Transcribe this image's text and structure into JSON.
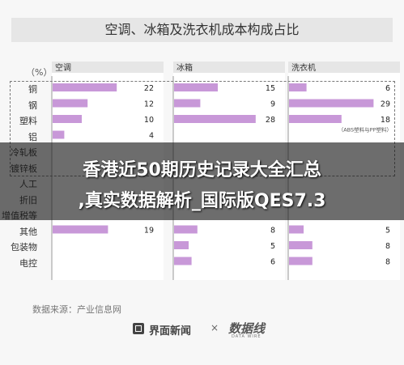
{
  "title": "空调、冰箱及洗衣机成本构成占比",
  "unit_label": "（%）",
  "source": "数据来源：产业信息网",
  "footer": {
    "brand": "界面新闻",
    "separator": "×",
    "partner": "数据线",
    "partner_sub": "DATA WIRE"
  },
  "overlay": {
    "line1": "香港近50期历史记录大全汇总",
    "line2": ",真实数据解析_国际版QES7.3"
  },
  "colors": {
    "bar": "#c898d8",
    "panel_bg": "#ffffff",
    "header_bg": "#e6e6e6",
    "axis": "#9a9a9a"
  },
  "chart_data": {
    "type": "bar",
    "orientation": "horizontal",
    "title": "空调、冰箱及洗衣机成本构成占比",
    "unit": "%",
    "categories": [
      "铜",
      "钢",
      "塑料",
      "铝",
      "冷轧板",
      "镀锌板",
      "人工",
      "折旧",
      "增值税等",
      "其他",
      "包装物",
      "电控"
    ],
    "xlim": [
      0,
      30
    ],
    "panels": [
      {
        "name": "空调",
        "values": [
          22,
          12,
          10,
          4,
          null,
          null,
          null,
          null,
          null,
          19,
          null,
          null
        ]
      },
      {
        "name": "冰箱",
        "values": [
          15,
          9,
          28,
          null,
          null,
          null,
          null,
          null,
          null,
          8,
          5,
          6
        ]
      },
      {
        "name": "洗衣机",
        "values": [
          6,
          29,
          18,
          null,
          null,
          null,
          null,
          null,
          null,
          5,
          8,
          8
        ]
      }
    ],
    "annotation": {
      "panel": "洗衣机",
      "text": "（ABS塑料与PP塑料）"
    }
  }
}
